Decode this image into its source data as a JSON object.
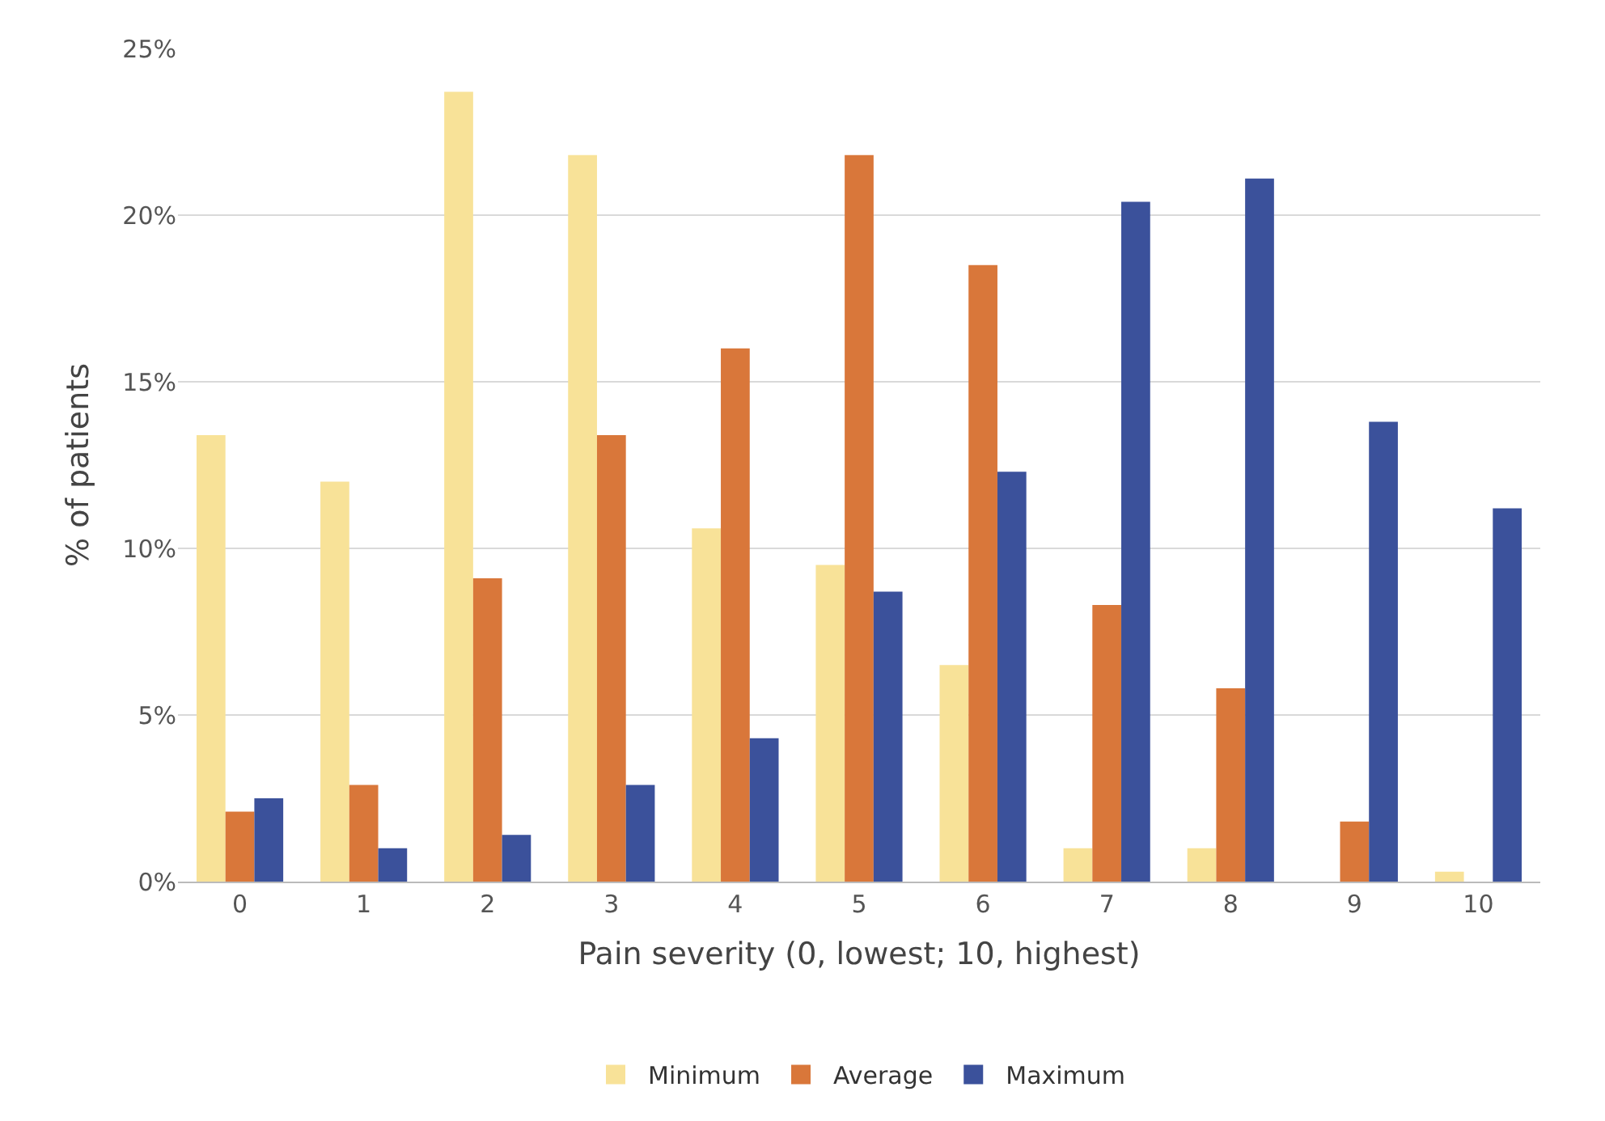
{
  "chart_data": {
    "type": "bar",
    "xlabel": "Pain severity (0, lowest; 10, highest)",
    "ylabel": "% of patients",
    "categories": [
      "0",
      "1",
      "2",
      "3",
      "4",
      "5",
      "6",
      "7",
      "8",
      "9",
      "10"
    ],
    "series": [
      {
        "name": "Minimum",
        "color": "#f8e298",
        "values": [
          13.4,
          12.0,
          23.7,
          21.8,
          10.6,
          9.5,
          6.5,
          1.0,
          1.0,
          0,
          0.3
        ]
      },
      {
        "name": "Average",
        "color": "#d9773a",
        "values": [
          2.1,
          2.9,
          9.1,
          13.4,
          16.0,
          21.8,
          18.5,
          8.3,
          5.8,
          1.8,
          0
        ]
      },
      {
        "name": "Maximum",
        "color": "#3b519b",
        "values": [
          2.5,
          1.0,
          1.4,
          2.9,
          4.3,
          8.7,
          12.3,
          20.4,
          21.1,
          13.8,
          11.2
        ]
      }
    ],
    "ylim": [
      0,
      25
    ],
    "yticks": [
      {
        "value": 0,
        "label": "0%"
      },
      {
        "value": 5,
        "label": "5%"
      },
      {
        "value": 10,
        "label": "10%"
      },
      {
        "value": 15,
        "label": "15%"
      },
      {
        "value": 20,
        "label": "20%"
      },
      {
        "value": 25,
        "label": "25%"
      }
    ],
    "grid": "y",
    "legend": "bottom"
  }
}
